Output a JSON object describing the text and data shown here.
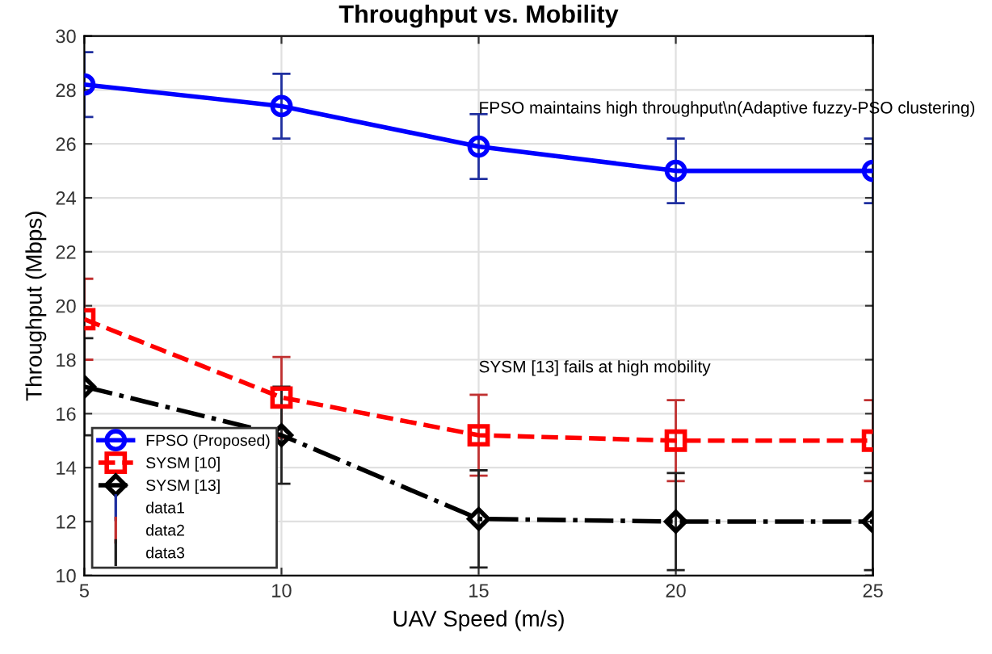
{
  "chart_data": {
    "type": "line",
    "title": "Throughput vs. Mobility",
    "xlabel": "UAV Speed (m/s)",
    "ylabel": "Throughput (Mbps)",
    "x": [
      5,
      10,
      15,
      20,
      25
    ],
    "series": [
      {
        "name": "FPSO (Proposed)",
        "color": "#0000ff",
        "values": [
          28.2,
          27.4,
          25.9,
          25.0,
          25.0
        ],
        "errors": [
          1.2,
          1.2,
          1.2,
          1.2,
          1.2
        ],
        "marker": "circle",
        "line_style": "solid"
      },
      {
        "name": "SYSM [10]",
        "color": "#ff0000",
        "values": [
          19.5,
          16.6,
          15.2,
          15.0,
          15.0
        ],
        "errors": [
          1.5,
          1.5,
          1.5,
          1.5,
          1.5
        ],
        "marker": "square",
        "line_style": "dashed"
      },
      {
        "name": "SYSM [13]",
        "color": "#000000",
        "values": [
          17.0,
          15.2,
          12.1,
          12.0,
          12.0
        ],
        "errors": [
          1.8,
          1.8,
          1.8,
          1.8,
          1.8
        ],
        "marker": "diamond",
        "line_style": "dashdot"
      },
      {
        "name": "data1",
        "color": "#1f2f9f",
        "values": [
          null,
          null,
          null,
          null,
          null
        ]
      },
      {
        "name": "data2",
        "color": "#c03030",
        "values": [
          null,
          null,
          null,
          null,
          null
        ]
      },
      {
        "name": "data3",
        "color": "#202020",
        "values": [
          null,
          null,
          null,
          null,
          null
        ]
      }
    ],
    "annotations": [
      "FPSO maintains high throughput\\n(Adaptive fuzzy-PSO clustering)",
      "SYSM [13] fails at high mobility"
    ],
    "xlim": [
      5,
      25
    ],
    "xticks": [
      5,
      10,
      15,
      20,
      25
    ],
    "ylim": [
      10,
      30
    ],
    "yticks": [
      10,
      12,
      14,
      16,
      18,
      20,
      22,
      24,
      26,
      28,
      30
    ],
    "grid": true,
    "legend": "bottom left"
  }
}
